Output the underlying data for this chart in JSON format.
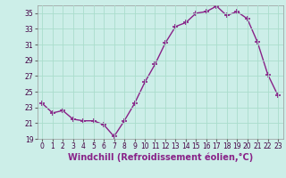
{
  "x": [
    0,
    1,
    2,
    3,
    4,
    5,
    6,
    7,
    8,
    9,
    10,
    11,
    12,
    13,
    14,
    15,
    16,
    17,
    18,
    19,
    20,
    21,
    22,
    23
  ],
  "y": [
    23.5,
    22.3,
    22.6,
    21.5,
    21.3,
    21.3,
    20.8,
    19.3,
    21.3,
    23.5,
    26.2,
    28.5,
    31.2,
    33.3,
    33.8,
    35.0,
    35.2,
    35.9,
    34.7,
    35.2,
    34.3,
    31.3,
    27.2,
    24.5
  ],
  "line_color": "#882288",
  "marker": "+",
  "marker_size": 4,
  "marker_linewidth": 1.2,
  "bg_color": "#cceee8",
  "grid_color": "#aaddcc",
  "xlabel": "Windchill (Refroidissement éolien,°C)",
  "ylim": [
    19,
    36
  ],
  "yticks": [
    19,
    21,
    23,
    25,
    27,
    29,
    31,
    33,
    35
  ],
  "xticks": [
    0,
    1,
    2,
    3,
    4,
    5,
    6,
    7,
    8,
    9,
    10,
    11,
    12,
    13,
    14,
    15,
    16,
    17,
    18,
    19,
    20,
    21,
    22,
    23
  ],
  "tick_fontsize": 5.5,
  "xlabel_fontsize": 7.0,
  "linewidth": 1.0
}
